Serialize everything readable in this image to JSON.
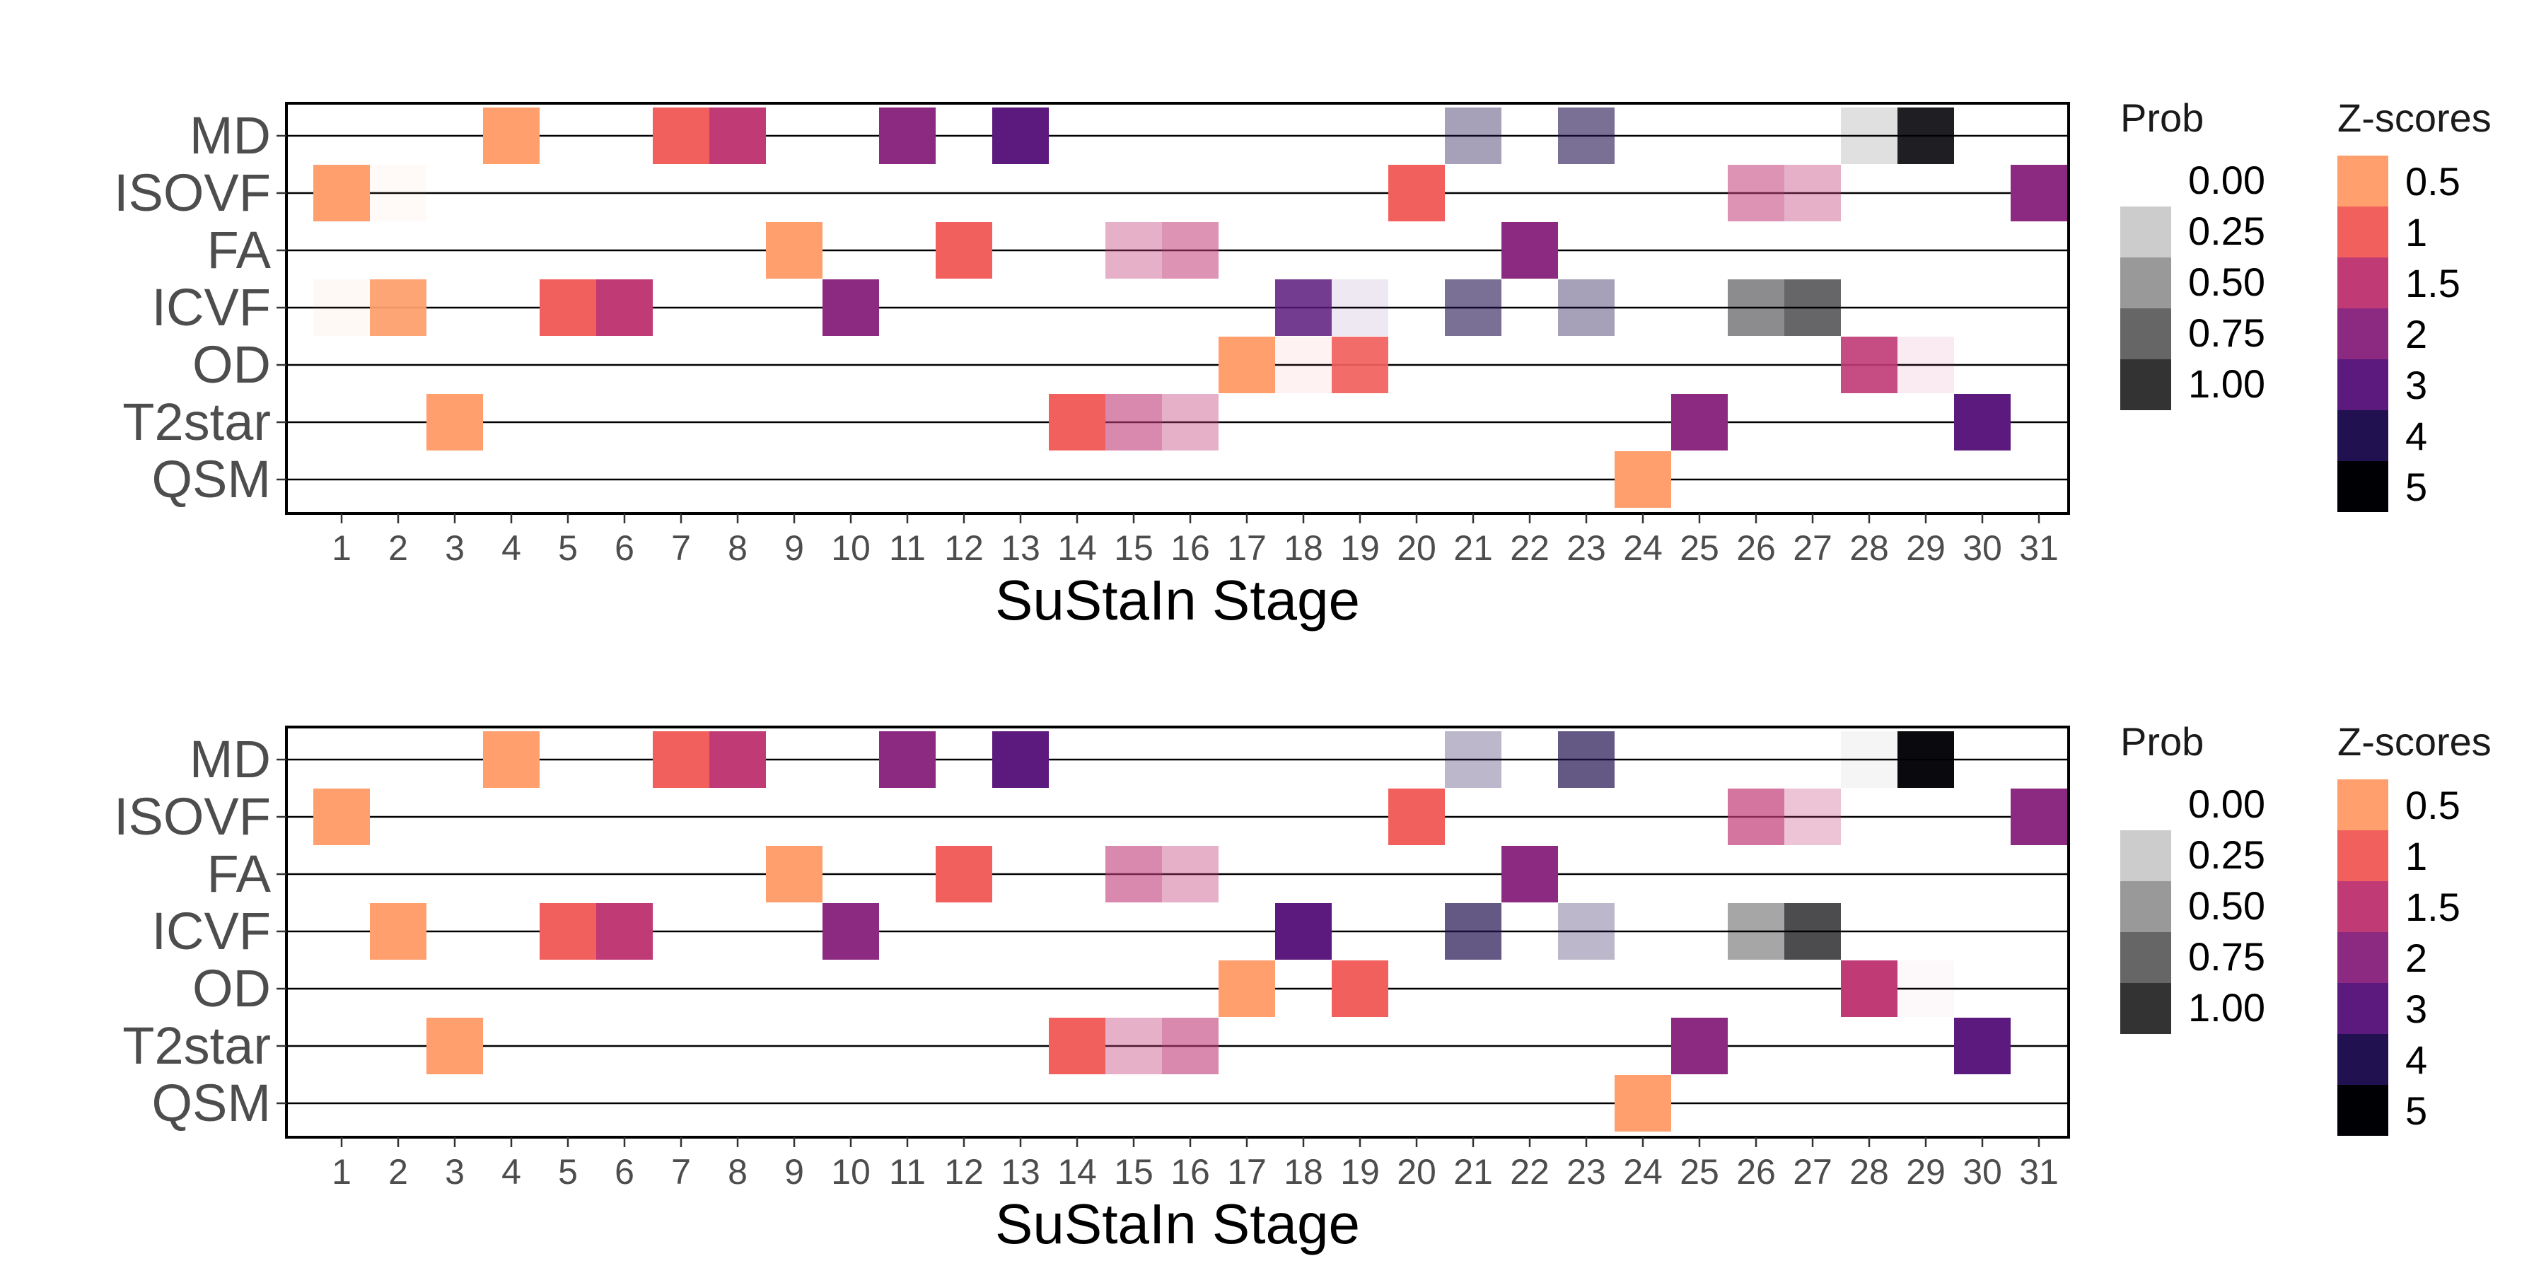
{
  "chart_data": [
    {
      "type": "heatmap",
      "xlabel": "SuStaIn Stage",
      "ylabel": "",
      "x_ticks": [
        "1",
        "2",
        "3",
        "4",
        "5",
        "6",
        "7",
        "8",
        "9",
        "10",
        "11",
        "12",
        "13",
        "14",
        "15",
        "16",
        "17",
        "18",
        "19",
        "20",
        "21",
        "22",
        "23",
        "24",
        "25",
        "26",
        "27",
        "28",
        "29",
        "30",
        "31"
      ],
      "y_ticks": [
        "MD",
        "ISOVF",
        "FA",
        "ICVF",
        "OD",
        "T2star",
        "QSM"
      ],
      "legend_prob": {
        "title": "Prob",
        "labels": [
          "0.00",
          "0.25",
          "0.50",
          "0.75",
          "1.00"
        ],
        "levels": [
          0,
          0.25,
          0.5,
          0.75,
          1.0
        ]
      },
      "legend_z": {
        "title": "Z-scores",
        "labels": [
          "0.5",
          "1",
          "1.5",
          "2",
          "3",
          "4",
          "5"
        ]
      },
      "cells": [
        {
          "biomarker": "MD",
          "stage": 4,
          "z": "0.5",
          "prob": 1.0
        },
        {
          "biomarker": "MD",
          "stage": 7,
          "z": "1",
          "prob": 1.0
        },
        {
          "biomarker": "MD",
          "stage": 8,
          "z": "1.5",
          "prob": 1.0
        },
        {
          "biomarker": "MD",
          "stage": 11,
          "z": "2",
          "prob": 1.0
        },
        {
          "biomarker": "MD",
          "stage": 13,
          "z": "3",
          "prob": 1.0
        },
        {
          "biomarker": "MD",
          "stage": 21,
          "z": "4",
          "prob": 0.4
        },
        {
          "biomarker": "MD",
          "stage": 23,
          "z": "4",
          "prob": 0.6
        },
        {
          "biomarker": "MD",
          "stage": 28,
          "z": "5",
          "prob": 0.12
        },
        {
          "biomarker": "MD",
          "stage": 29,
          "z": "5",
          "prob": 0.88
        },
        {
          "biomarker": "ISOVF",
          "stage": 1,
          "z": "0.5",
          "prob": 1.0
        },
        {
          "biomarker": "ISOVF",
          "stage": 2,
          "z": "0.5",
          "prob": 0.05
        },
        {
          "biomarker": "ISOVF",
          "stage": 20,
          "z": "1",
          "prob": 1.0
        },
        {
          "biomarker": "ISOVF",
          "stage": 26,
          "z": "1.5",
          "prob": 0.55
        },
        {
          "biomarker": "ISOVF",
          "stage": 27,
          "z": "1.5",
          "prob": 0.4
        },
        {
          "biomarker": "ISOVF",
          "stage": 31,
          "z": "2",
          "prob": 1.0
        },
        {
          "biomarker": "FA",
          "stage": 9,
          "z": "0.5",
          "prob": 1.0
        },
        {
          "biomarker": "FA",
          "stage": 12,
          "z": "1",
          "prob": 1.0
        },
        {
          "biomarker": "FA",
          "stage": 15,
          "z": "1.5",
          "prob": 0.4
        },
        {
          "biomarker": "FA",
          "stage": 16,
          "z": "1.5",
          "prob": 0.55
        },
        {
          "biomarker": "FA",
          "stage": 22,
          "z": "2",
          "prob": 1.0
        },
        {
          "biomarker": "ICVF",
          "stage": 1,
          "z": "0.5",
          "prob": 0.06
        },
        {
          "biomarker": "ICVF",
          "stage": 2,
          "z": "0.5",
          "prob": 0.94
        },
        {
          "biomarker": "ICVF",
          "stage": 5,
          "z": "1",
          "prob": 1.0
        },
        {
          "biomarker": "ICVF",
          "stage": 6,
          "z": "1.5",
          "prob": 1.0
        },
        {
          "biomarker": "ICVF",
          "stage": 10,
          "z": "2",
          "prob": 1.0
        },
        {
          "biomarker": "ICVF",
          "stage": 18,
          "z": "3",
          "prob": 0.85
        },
        {
          "biomarker": "ICVF",
          "stage": 19,
          "z": "3",
          "prob": 0.1
        },
        {
          "biomarker": "ICVF",
          "stage": 21,
          "z": "4",
          "prob": 0.6
        },
        {
          "biomarker": "ICVF",
          "stage": 23,
          "z": "4",
          "prob": 0.4
        },
        {
          "biomarker": "ICVF",
          "stage": 26,
          "z": "5",
          "prob": 0.45
        },
        {
          "biomarker": "ICVF",
          "stage": 27,
          "z": "5",
          "prob": 0.6
        },
        {
          "biomarker": "OD",
          "stage": 17,
          "z": "0.5",
          "prob": 1.0
        },
        {
          "biomarker": "OD",
          "stage": 18,
          "z": "1",
          "prob": 0.08
        },
        {
          "biomarker": "OD",
          "stage": 19,
          "z": "1",
          "prob": 0.92
        },
        {
          "biomarker": "OD",
          "stage": 28,
          "z": "1.5",
          "prob": 0.9
        },
        {
          "biomarker": "OD",
          "stage": 29,
          "z": "1.5",
          "prob": 0.1
        },
        {
          "biomarker": "T2star",
          "stage": 3,
          "z": "0.5",
          "prob": 1.0
        },
        {
          "biomarker": "T2star",
          "stage": 14,
          "z": "1",
          "prob": 1.0
        },
        {
          "biomarker": "T2star",
          "stage": 15,
          "z": "1.5",
          "prob": 0.6
        },
        {
          "biomarker": "T2star",
          "stage": 16,
          "z": "1.5",
          "prob": 0.4
        },
        {
          "biomarker": "T2star",
          "stage": 25,
          "z": "2",
          "prob": 1.0
        },
        {
          "biomarker": "T2star",
          "stage": 30,
          "z": "3",
          "prob": 1.0
        },
        {
          "biomarker": "QSM",
          "stage": 24,
          "z": "0.5",
          "prob": 1.0
        }
      ]
    },
    {
      "type": "heatmap",
      "xlabel": "SuStaIn Stage",
      "ylabel": "",
      "x_ticks": [
        "1",
        "2",
        "3",
        "4",
        "5",
        "6",
        "7",
        "8",
        "9",
        "10",
        "11",
        "12",
        "13",
        "14",
        "15",
        "16",
        "17",
        "18",
        "19",
        "20",
        "21",
        "22",
        "23",
        "24",
        "25",
        "26",
        "27",
        "28",
        "29",
        "30",
        "31"
      ],
      "y_ticks": [
        "MD",
        "ISOVF",
        "FA",
        "ICVF",
        "OD",
        "T2star",
        "QSM"
      ],
      "legend_prob": {
        "title": "Prob",
        "labels": [
          "0.00",
          "0.25",
          "0.50",
          "0.75",
          "1.00"
        ],
        "levels": [
          0,
          0.25,
          0.5,
          0.75,
          1.0
        ]
      },
      "legend_z": {
        "title": "Z-scores",
        "labels": [
          "0.5",
          "1",
          "1.5",
          "2",
          "3",
          "4",
          "5"
        ]
      },
      "cells": [
        {
          "biomarker": "MD",
          "stage": 4,
          "z": "0.5",
          "prob": 1.0
        },
        {
          "biomarker": "MD",
          "stage": 7,
          "z": "1",
          "prob": 1.0
        },
        {
          "biomarker": "MD",
          "stage": 8,
          "z": "1.5",
          "prob": 1.0
        },
        {
          "biomarker": "MD",
          "stage": 11,
          "z": "2",
          "prob": 1.0
        },
        {
          "biomarker": "MD",
          "stage": 13,
          "z": "3",
          "prob": 1.0
        },
        {
          "biomarker": "MD",
          "stage": 21,
          "z": "4",
          "prob": 0.3
        },
        {
          "biomarker": "MD",
          "stage": 23,
          "z": "4",
          "prob": 0.7
        },
        {
          "biomarker": "MD",
          "stage": 28,
          "z": "5",
          "prob": 0.04
        },
        {
          "biomarker": "MD",
          "stage": 29,
          "z": "5",
          "prob": 0.96
        },
        {
          "biomarker": "ISOVF",
          "stage": 1,
          "z": "0.5",
          "prob": 1.0
        },
        {
          "biomarker": "ISOVF",
          "stage": 20,
          "z": "1",
          "prob": 1.0
        },
        {
          "biomarker": "ISOVF",
          "stage": 26,
          "z": "1.5",
          "prob": 0.7
        },
        {
          "biomarker": "ISOVF",
          "stage": 27,
          "z": "1.5",
          "prob": 0.3
        },
        {
          "biomarker": "ISOVF",
          "stage": 31,
          "z": "2",
          "prob": 1.0
        },
        {
          "biomarker": "FA",
          "stage": 9,
          "z": "0.5",
          "prob": 1.0
        },
        {
          "biomarker": "FA",
          "stage": 12,
          "z": "1",
          "prob": 1.0
        },
        {
          "biomarker": "FA",
          "stage": 15,
          "z": "1.5",
          "prob": 0.6
        },
        {
          "biomarker": "FA",
          "stage": 16,
          "z": "1.5",
          "prob": 0.4
        },
        {
          "biomarker": "FA",
          "stage": 22,
          "z": "2",
          "prob": 1.0
        },
        {
          "biomarker": "ICVF",
          "stage": 2,
          "z": "0.5",
          "prob": 1.0
        },
        {
          "biomarker": "ICVF",
          "stage": 5,
          "z": "1",
          "prob": 1.0
        },
        {
          "biomarker": "ICVF",
          "stage": 6,
          "z": "1.5",
          "prob": 1.0
        },
        {
          "biomarker": "ICVF",
          "stage": 10,
          "z": "2",
          "prob": 1.0
        },
        {
          "biomarker": "ICVF",
          "stage": 18,
          "z": "3",
          "prob": 1.0
        },
        {
          "biomarker": "ICVF",
          "stage": 21,
          "z": "4",
          "prob": 0.7
        },
        {
          "biomarker": "ICVF",
          "stage": 23,
          "z": "4",
          "prob": 0.3
        },
        {
          "biomarker": "ICVF",
          "stage": 26,
          "z": "5",
          "prob": 0.35
        },
        {
          "biomarker": "ICVF",
          "stage": 27,
          "z": "5",
          "prob": 0.7
        },
        {
          "biomarker": "OD",
          "stage": 17,
          "z": "0.5",
          "prob": 1.0
        },
        {
          "biomarker": "OD",
          "stage": 19,
          "z": "1",
          "prob": 1.0
        },
        {
          "biomarker": "OD",
          "stage": 28,
          "z": "1.5",
          "prob": 1.0
        },
        {
          "biomarker": "OD",
          "stage": 29,
          "z": "1.5",
          "prob": 0.03
        },
        {
          "biomarker": "T2star",
          "stage": 3,
          "z": "0.5",
          "prob": 1.0
        },
        {
          "biomarker": "T2star",
          "stage": 14,
          "z": "1",
          "prob": 1.0
        },
        {
          "biomarker": "T2star",
          "stage": 15,
          "z": "1.5",
          "prob": 0.4
        },
        {
          "biomarker": "T2star",
          "stage": 16,
          "z": "1.5",
          "prob": 0.6
        },
        {
          "biomarker": "T2star",
          "stage": 25,
          "z": "2",
          "prob": 1.0
        },
        {
          "biomarker": "T2star",
          "stage": 30,
          "z": "3",
          "prob": 1.0
        },
        {
          "biomarker": "QSM",
          "stage": 24,
          "z": "0.5",
          "prob": 1.0
        }
      ]
    }
  ],
  "colors": {
    "z_scale": {
      "0.5": "#fe9f6d",
      "1": "#f1605d",
      "1.5": "#c03a76",
      "2": "#8c2981",
      "3": "#5c1a7e",
      "4": "#221150",
      "5": "#000004"
    },
    "prob_scale": [
      "#ffffff",
      "#cccccc",
      "#999999",
      "#666666",
      "#333333"
    ],
    "text": "#4d4d4d",
    "title_text": "#1a1a1a",
    "panel_border": "#000000"
  }
}
